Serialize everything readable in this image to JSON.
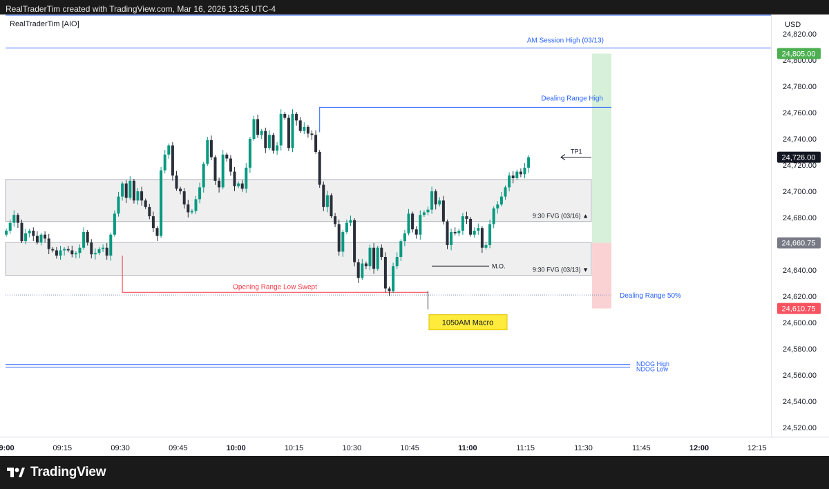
{
  "caption": "RealTraderTim created with TradingView.com, Mar 16, 2026 13:25 UTC-4",
  "symbol_title": "RealTraderTim [AIO]",
  "currency": "USD",
  "brand": "TradingView",
  "colors": {
    "up": "#089981",
    "down": "#2a2e39",
    "blue_level": "#2962ff",
    "red_level": "#f23645",
    "zone_fill": "#efefef",
    "tp_zone": "#d7f0d9",
    "sl_zone": "#fad2d4",
    "macro_box": "#ffeb3b"
  },
  "chart_data": {
    "type": "candlestick",
    "price_axis": {
      "ticks": [
        "24,820.00",
        "24,800.00",
        "24,780.00",
        "24,760.00",
        "24,740.00",
        "24,720.00",
        "24,700.00",
        "24,680.00",
        "24,660.00",
        "24,640.00",
        "24,620.00",
        "24,600.00",
        "24,580.00",
        "24,560.00",
        "24,540.00",
        "24,520.00"
      ],
      "range": [
        24508,
        24826
      ]
    },
    "time_axis": {
      "ticks": [
        {
          "label": "09:00",
          "bold": true
        },
        {
          "label": "09:15",
          "bold": false
        },
        {
          "label": "09:30",
          "bold": false
        },
        {
          "label": "09:45",
          "bold": false
        },
        {
          "label": "10:00",
          "bold": true
        },
        {
          "label": "10:15",
          "bold": false
        },
        {
          "label": "10:30",
          "bold": false
        },
        {
          "label": "10:45",
          "bold": false
        },
        {
          "label": "11:00",
          "bold": true
        },
        {
          "label": "11:15",
          "bold": false
        },
        {
          "label": "11:30",
          "bold": false
        },
        {
          "label": "11:45",
          "bold": false
        },
        {
          "label": "12:00",
          "bold": true
        },
        {
          "label": "12:15",
          "bold": false
        }
      ]
    },
    "price_tags": [
      {
        "value": "24,805.00",
        "price": 24805,
        "color": "#4caf50"
      },
      {
        "value": "24,726.00",
        "price": 24726,
        "color": "#131722"
      },
      {
        "value": "24,660.75",
        "price": 24660.75,
        "color": "#787b86"
      },
      {
        "value": "24,610.75",
        "price": 24610.75,
        "color": "#f7525f"
      }
    ],
    "closes": [
      24670,
      24676,
      24682,
      24676,
      24662,
      24668,
      24670,
      24666,
      24661,
      24667,
      24664,
      24656,
      24655,
      24651,
      24655,
      24656,
      24655,
      24652,
      24653,
      24657,
      24669,
      24661,
      24652,
      24653,
      24656,
      24657,
      24651,
      24667,
      24683,
      24696,
      24706,
      24695,
      24708,
      24693,
      24700,
      24693,
      24688,
      24681,
      24672,
      24666,
      24716,
      24728,
      24735,
      24712,
      24702,
      24700,
      24690,
      24684,
      24685,
      24694,
      24703,
      24721,
      24739,
      24726,
      24708,
      24703,
      24728,
      24725,
      24715,
      24704,
      24706,
      24702,
      24718,
      24740,
      24755,
      24743,
      24746,
      24733,
      24743,
      24731,
      24735,
      24759,
      24756,
      24733,
      24759,
      24754,
      24746,
      24749,
      24744,
      24743,
      24730,
      24705,
      24688,
      24697,
      24681,
      24675,
      24654,
      24669,
      24676,
      24678,
      24646,
      24634,
      24645,
      24643,
      24657,
      24641,
      24657,
      24650,
      24626,
      24624,
      24643,
      24650,
      24662,
      24668,
      24683,
      24671,
      24667,
      24682,
      24684,
      24686,
      24700,
      24690,
      24693,
      24677,
      24659,
      24669,
      24668,
      24670,
      24681,
      24679,
      24667,
      24670,
      24672,
      24657,
      24659,
      24675,
      24687,
      24690,
      24696,
      24703,
      24712,
      24710,
      24715,
      24713,
      24718,
      24726
    ],
    "levels": [
      {
        "label": "AM Session High (03/13)",
        "price": 24805
      },
      {
        "label": "Dealing Range High",
        "price": 24764
      },
      {
        "label": "Dealing Range 50%",
        "price": 24621
      },
      {
        "label": "Opening Range Low Swept",
        "price": 24623
      },
      {
        "label": "NDOG High",
        "price": 24568
      },
      {
        "label": "NDOG Low",
        "price": 24566
      },
      {
        "label": "M.O.",
        "price": 24643
      },
      {
        "label": "TP1",
        "price": 24726
      }
    ],
    "zones": [
      {
        "label": "9:30 FVG (03/16) ▲",
        "top": 24709,
        "bottom": 24677
      },
      {
        "label": "9:30 FVG (03/13) ▼",
        "top": 24661,
        "bottom": 24636
      }
    ],
    "position": {
      "entry": 24660.75,
      "target": 24805,
      "stop": 24610.75
    },
    "annotations": [
      {
        "label": "1050AM Macro"
      }
    ]
  }
}
